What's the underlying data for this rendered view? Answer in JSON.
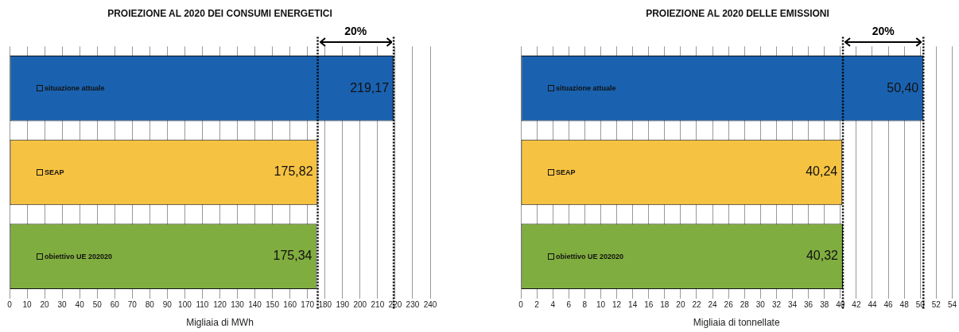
{
  "chart_data": [
    {
      "type": "bar",
      "orientation": "horizontal",
      "title": "PROIEZIONE AL 2020 DEI CONSUMI ENERGETICI",
      "xlabel": "Migliaia di MWh",
      "categories": [
        "situazione attuale",
        "SEAP",
        "obiettivo UE 202020"
      ],
      "values": [
        219.17,
        175.82,
        175.34
      ],
      "colors": [
        "#1a62b0",
        "#f6c242",
        "#80ad3f"
      ],
      "value_labels": [
        "219,17",
        "175,82",
        "175,34"
      ],
      "xlim": [
        0,
        240
      ],
      "xticks": [
        0,
        10,
        20,
        30,
        40,
        50,
        60,
        70,
        80,
        90,
        100,
        110,
        120,
        130,
        140,
        150,
        160,
        170,
        180,
        190,
        200,
        210,
        220,
        230,
        240
      ],
      "grid": "x",
      "tick_labels": "x",
      "ref_lines": [
        {
          "axis": "x",
          "value": 175.82,
          "color": "#000000",
          "line_style": "dotted"
        },
        {
          "axis": "x",
          "value": 219.17,
          "color": "#000000",
          "line_style": "dotted"
        }
      ],
      "annotations": [
        "20%"
      ]
    },
    {
      "type": "bar",
      "orientation": "horizontal",
      "title": "PROIEZIONE AL 2020 DELLE EMISSIONI",
      "xlabel": "Migliaia di tonnellate",
      "categories": [
        "situazione attuale",
        "SEAP",
        "obiettivo UE 202020"
      ],
      "values": [
        50.4,
        40.24,
        40.32
      ],
      "colors": [
        "#1a62b0",
        "#f6c242",
        "#80ad3f"
      ],
      "value_labels": [
        "50,40",
        "40,24",
        "40,32"
      ],
      "xlim": [
        0,
        54
      ],
      "xticks": [
        0,
        2,
        4,
        6,
        8,
        10,
        12,
        14,
        16,
        18,
        20,
        22,
        24,
        26,
        28,
        30,
        32,
        34,
        36,
        38,
        40,
        42,
        44,
        46,
        48,
        50,
        52,
        54
      ],
      "grid": "x",
      "tick_labels": "x",
      "ref_lines": [
        {
          "axis": "x",
          "value": 40.32,
          "color": "#000000",
          "line_style": "dotted"
        },
        {
          "axis": "x",
          "value": 50.4,
          "color": "#000000",
          "line_style": "dotted"
        }
      ],
      "annotations": [
        "20%"
      ]
    }
  ]
}
